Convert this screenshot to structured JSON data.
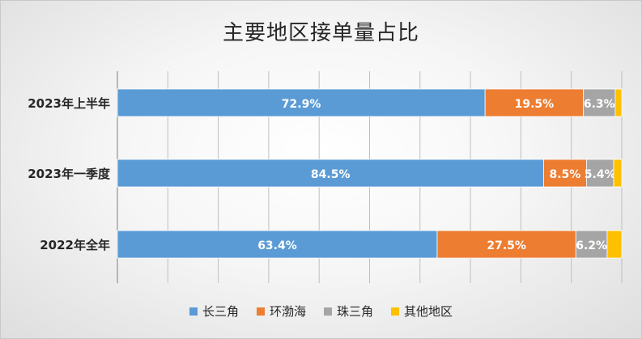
{
  "chart_data": {
    "type": "bar",
    "orientation": "horizontal",
    "stacked": "percent",
    "title": "主要地区接单量占比",
    "categories": [
      "2023年上半年",
      "2023年一季度",
      "2022年全年"
    ],
    "series": [
      {
        "name": "长三角",
        "color": "#5B9BD5",
        "values": [
          72.9,
          84.5,
          63.4
        ],
        "labels": [
          "72.9%",
          "84.5%",
          "63.4%"
        ]
      },
      {
        "name": "环渤海",
        "color": "#ED7D31",
        "values": [
          19.5,
          8.5,
          27.5
        ],
        "labels": [
          "19.5%",
          "8.5%",
          "27.5%"
        ]
      },
      {
        "name": "珠三角",
        "color": "#A5A5A5",
        "values": [
          6.3,
          5.4,
          6.2
        ],
        "labels": [
          "6.3%",
          "5.4%",
          "6.2%"
        ]
      },
      {
        "name": "其他地区",
        "color": "#FFC000",
        "values": [
          1.3,
          1.6,
          2.9
        ],
        "labels": [
          "",
          "",
          ""
        ]
      }
    ],
    "xlim": [
      0,
      100
    ],
    "grid": true,
    "legend_position": "bottom"
  }
}
